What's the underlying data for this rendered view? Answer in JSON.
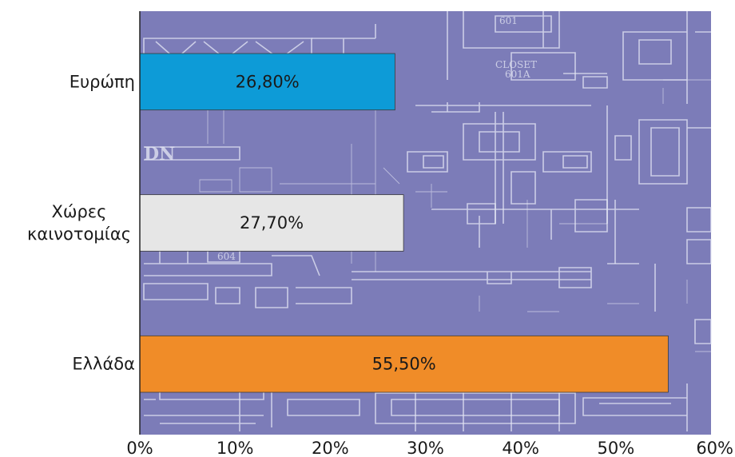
{
  "chart_data": {
    "type": "bar",
    "orientation": "horizontal",
    "categories": [
      "Ευρώπη",
      "Χώρες καινοτομίας",
      "Ελλάδα"
    ],
    "category_lines": [
      [
        "Ευρώπη"
      ],
      [
        "Χώρες",
        "καινοτομίας"
      ],
      [
        "Ελλάδα"
      ]
    ],
    "values": [
      26.8,
      27.7,
      55.5
    ],
    "data_labels": [
      "26,80%",
      "27,70%",
      "55,50%"
    ],
    "bar_colors": [
      "#0d9bd7",
      "#e6e6e6",
      "#f08c28"
    ],
    "xlim": [
      0,
      60
    ],
    "x_ticks": [
      0,
      10,
      20,
      30,
      40,
      50,
      60
    ],
    "x_tick_labels": [
      "0%",
      "10%",
      "20%",
      "30%",
      "40%",
      "50%",
      "60%"
    ],
    "plot_background_color": "#7c7cb8",
    "plot_background_image": "architectural floor plan blueprint",
    "grid": false,
    "legend": "none",
    "title": "",
    "xlabel": "",
    "ylabel": ""
  }
}
